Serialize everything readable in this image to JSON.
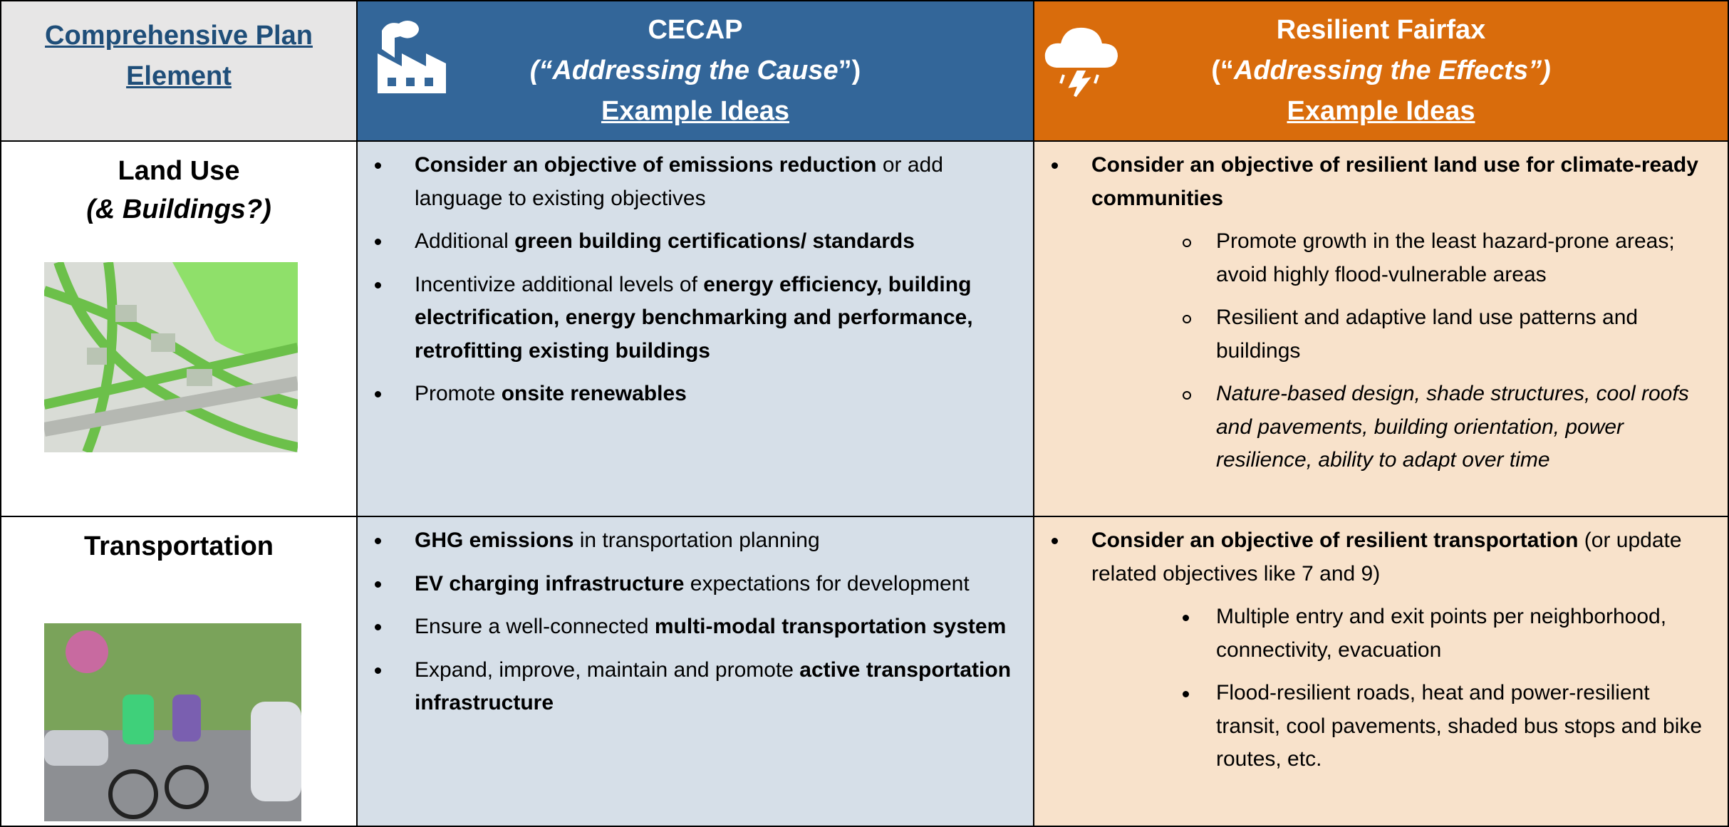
{
  "header": {
    "element": "Comprehensive Plan Element",
    "cecap": {
      "title": "CECAP",
      "subtitle": [
        {
          "text": "(“Addressing the Cause",
          "italic": true
        },
        {
          "text": "”)"
        }
      ],
      "ideas": "Example Ideas"
    },
    "resilient": {
      "title": "Resilient Fairfax",
      "subtitle": [
        {
          "text": "(“"
        },
        {
          "text": "Addressing the Effects”)",
          "italic": true
        }
      ],
      "ideas": "Example Ideas"
    }
  },
  "rows": [
    {
      "element": {
        "title": "Land Use",
        "subtitle": "(& Buildings?)"
      },
      "cecap": [
        {
          "runs": [
            {
              "text": "Consider an objective of emissions reduction",
              "bold": true
            },
            {
              "text": " or add language to existing objectives"
            }
          ]
        },
        {
          "runs": [
            {
              "text": "Additional "
            },
            {
              "text": "green building certifications/ standards",
              "bold": true
            }
          ]
        },
        {
          "runs": [
            {
              "text": "Incentivize additional levels of "
            },
            {
              "text": "energy efficiency, building electrification, energy benchmarking and performance, retrofitting existing buildings",
              "bold": true
            }
          ]
        },
        {
          "runs": [
            {
              "text": "Promote "
            },
            {
              "text": "onsite renewables",
              "bold": true
            }
          ]
        }
      ],
      "resilient": [
        {
          "runs": [
            {
              "text": "Consider an objective of resilient land use for climate-ready communities",
              "bold": true
            }
          ],
          "sub": [
            {
              "runs": [
                {
                  "text": "Promote growth in the least hazard-prone areas; avoid highly flood-vulnerable areas"
                }
              ]
            },
            {
              "runs": [
                {
                  "text": "Resilient and adaptive land use patterns and buildings"
                }
              ]
            },
            {
              "runs": [
                {
                  "text": "Nature-based design, shade structures, cool roofs and pavements, building orientation, power resilience, ability to adapt over time",
                  "italic": true
                }
              ]
            }
          ]
        }
      ]
    },
    {
      "element": {
        "title": "Transportation"
      },
      "cecap": [
        {
          "runs": [
            {
              "text": "GHG emissions",
              "bold": true
            },
            {
              "text": " in transportation planning"
            }
          ]
        },
        {
          "runs": [
            {
              "text": "EV charging infrastructure",
              "bold": true
            },
            {
              "text": " expectations for development"
            }
          ]
        },
        {
          "runs": [
            {
              "text": "Ensure a well-connected "
            },
            {
              "text": "multi-modal transportation system",
              "bold": true
            }
          ]
        },
        {
          "runs": [
            {
              "text": "Expand, improve, maintain and promote "
            },
            {
              "text": "active transportation infrastructure",
              "bold": true
            }
          ]
        }
      ],
      "resilient": [
        {
          "runs": [
            {
              "text": "Consider an objective of resilient transportation",
              "bold": true
            },
            {
              "text": " (or update related objectives like 7 and 9)"
            }
          ],
          "sub": [
            {
              "runs": [
                {
                  "text": "Multiple entry and exit points per neighborhood, connectivity, evacuation"
                }
              ]
            },
            {
              "runs": [
                {
                  "text": "Flood-resilient roads, heat and power-resilient transit, cool pavements, shaded bus stops and bike routes, etc."
                }
              ]
            }
          ]
        }
      ]
    }
  ]
}
